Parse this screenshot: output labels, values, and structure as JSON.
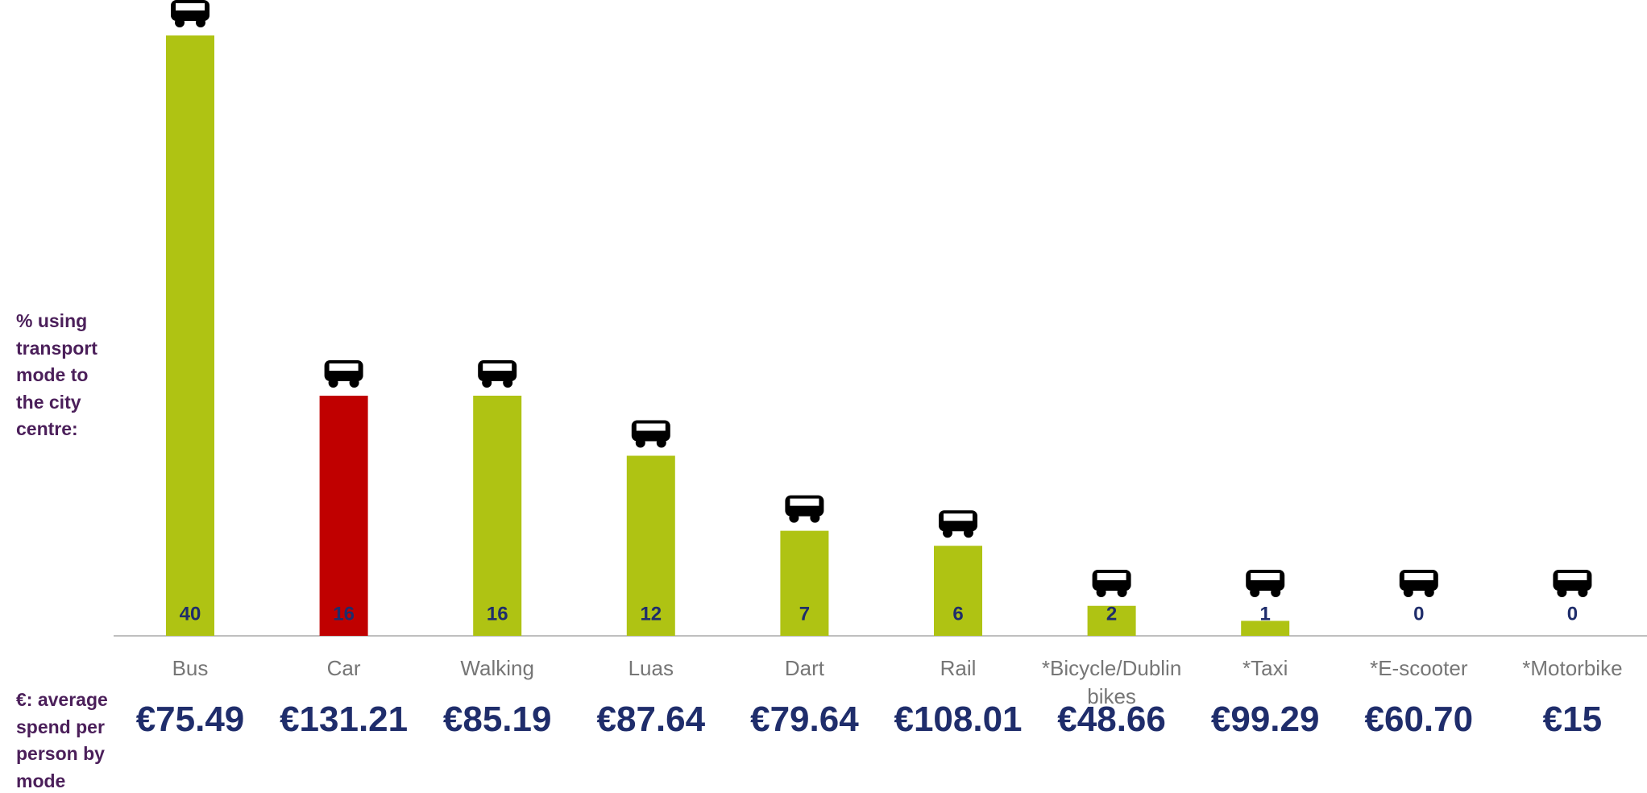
{
  "chart_data": {
    "type": "bar",
    "y_axis_label": "% using transport mode  to the city centre:",
    "categories": [
      "Bus",
      "Car",
      "Walking",
      "Luas",
      "Dart",
      "Rail",
      "*Bicycle/Dublin bikes",
      "*Taxi",
      "*E-scooter",
      "*Motorbike"
    ],
    "values": [
      40,
      16,
      16,
      12,
      7,
      6,
      2,
      1,
      0,
      0
    ],
    "colors": [
      "#afc313",
      "#c00000",
      "#afc313",
      "#afc313",
      "#afc313",
      "#afc313",
      "#afc313",
      "#afc313",
      "#afc313",
      "#afc313"
    ],
    "ylim": [
      0,
      40
    ],
    "spend_label": "€: average spend per person by mode",
    "spend": [
      "€75.49",
      "€131.21",
      "€85.19",
      "€87.64",
      "€79.64",
      "€108.01",
      "€48.66",
      "€99.29",
      "€60.70",
      "€15"
    ]
  }
}
